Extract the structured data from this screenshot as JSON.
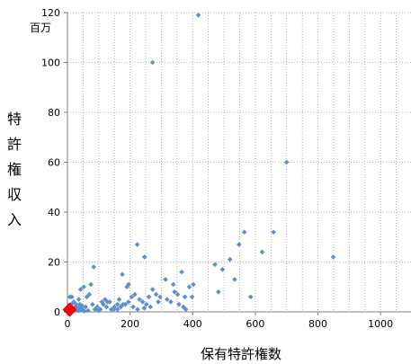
{
  "chart_data": {
    "type": "scatter",
    "xlabel": "保有特許権数",
    "ylabel": "特許権収入",
    "y_unit": "百万",
    "xlim": [
      0,
      1100
    ],
    "ylim": [
      0,
      120
    ],
    "x_ticks": [
      0,
      200,
      400,
      600,
      800,
      1000
    ],
    "y_ticks": [
      0,
      20,
      40,
      60,
      80,
      100,
      120
    ],
    "grid": true,
    "series": [
      {
        "color": "#5b8fd0",
        "marker": "diamond",
        "points": [
          [
            418,
            119
          ],
          [
            272,
            100
          ],
          [
            700,
            60
          ],
          [
            849,
            22
          ],
          [
            658,
            32
          ],
          [
            565,
            32
          ],
          [
            548,
            27
          ],
          [
            622,
            24
          ],
          [
            519,
            21
          ],
          [
            471,
            19
          ],
          [
            495,
            17
          ],
          [
            223,
            27
          ],
          [
            246,
            22
          ],
          [
            402,
            11
          ],
          [
            389,
            10
          ],
          [
            365,
            16
          ],
          [
            313,
            13
          ],
          [
            338,
            11
          ],
          [
            342,
            8
          ],
          [
            352,
            7
          ],
          [
            375,
            6
          ],
          [
            398,
            6
          ],
          [
            482,
            8
          ],
          [
            534,
            13
          ],
          [
            585,
            6
          ],
          [
            175,
            15
          ],
          [
            84,
            18
          ],
          [
            272,
            9
          ],
          [
            283,
            7
          ],
          [
            296,
            6
          ],
          [
            318,
            5
          ],
          [
            330,
            4
          ],
          [
            356,
            3
          ],
          [
            370,
            2
          ],
          [
            378,
            1
          ],
          [
            8,
            6
          ],
          [
            14,
            6
          ],
          [
            42,
            9
          ],
          [
            52,
            10
          ],
          [
            75,
            11
          ],
          [
            70,
            7
          ],
          [
            36,
            5
          ],
          [
            62,
            6
          ],
          [
            20,
            4
          ],
          [
            25,
            2
          ],
          [
            30,
            1
          ],
          [
            40,
            3
          ],
          [
            48,
            1
          ],
          [
            58,
            2
          ],
          [
            80,
            3
          ],
          [
            95,
            2
          ],
          [
            105,
            1
          ],
          [
            115,
            3
          ],
          [
            125,
            2
          ],
          [
            135,
            4
          ],
          [
            148,
            1
          ],
          [
            160,
            3
          ],
          [
            170,
            2
          ],
          [
            185,
            3
          ],
          [
            195,
            4
          ],
          [
            205,
            6
          ],
          [
            215,
            7
          ],
          [
            230,
            5
          ],
          [
            240,
            4
          ],
          [
            252,
            3
          ],
          [
            265,
            2
          ],
          [
            190,
            10
          ],
          [
            195,
            11
          ],
          [
            160,
            1
          ],
          [
            140,
            1
          ],
          [
            100,
            0.5
          ],
          [
            88,
            1
          ],
          [
            66,
            0.5
          ],
          [
            54,
            0.3
          ],
          [
            44,
            0.8
          ],
          [
            34,
            0.4
          ],
          [
            22,
            0.6
          ],
          [
            16,
            1.5
          ],
          [
            10,
            1.2
          ],
          [
            6,
            0.3
          ],
          [
            4,
            2.5
          ],
          [
            12,
            3
          ],
          [
            28,
            3
          ],
          [
            38,
            2
          ],
          [
            46,
            2.5
          ],
          [
            110,
            4
          ],
          [
            120,
            5
          ],
          [
            128,
            4
          ],
          [
            150,
            2
          ],
          [
            165,
            5
          ],
          [
            178,
            3
          ],
          [
            210,
            2
          ],
          [
            224,
            1
          ],
          [
            245,
            1.5
          ],
          [
            260,
            6
          ],
          [
            290,
            4
          ]
        ]
      }
    ],
    "highlight": {
      "x": 10,
      "y": 0.5,
      "color": "#ff0000",
      "marker": "diamond"
    }
  }
}
